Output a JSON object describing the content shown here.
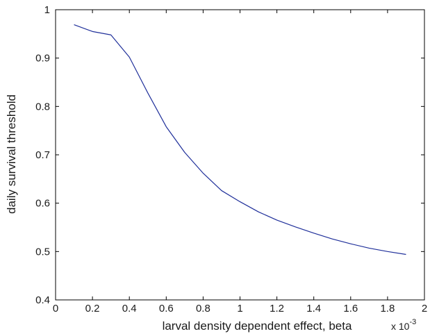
{
  "chart_data": {
    "type": "line",
    "title": "",
    "xlabel": "larval density dependent effect, beta",
    "ylabel": "daily survival threshold",
    "x_multiplier_label": "x 10",
    "x_multiplier_exponent": "-3",
    "xlim": [
      0,
      2
    ],
    "ylim": [
      0.4,
      1
    ],
    "xticks": [
      0,
      0.2,
      0.4,
      0.6,
      0.8,
      1,
      1.2,
      1.4,
      1.6,
      1.8,
      2
    ],
    "xtick_labels": [
      "0",
      "0.2",
      "0.4",
      "0.6",
      "0.8",
      "1",
      "1.2",
      "1.4",
      "1.6",
      "1.8",
      "2"
    ],
    "yticks": [
      0.4,
      0.5,
      0.6,
      0.7,
      0.8,
      0.9,
      1
    ],
    "ytick_labels": [
      "0.4",
      "0.5",
      "0.6",
      "0.7",
      "0.8",
      "0.9",
      "1"
    ],
    "grid": false,
    "series": [
      {
        "color": "#1f2f9a",
        "x": [
          0.1,
          0.2,
          0.3,
          0.4,
          0.5,
          0.6,
          0.7,
          0.8,
          0.9,
          1.0,
          1.1,
          1.2,
          1.3,
          1.4,
          1.5,
          1.6,
          1.7,
          1.8,
          1.9
        ],
        "y": [
          0.969,
          0.955,
          0.948,
          0.902,
          0.828,
          0.758,
          0.705,
          0.662,
          0.626,
          0.603,
          0.582,
          0.565,
          0.551,
          0.538,
          0.526,
          0.516,
          0.507,
          0.5,
          0.494
        ]
      }
    ]
  }
}
